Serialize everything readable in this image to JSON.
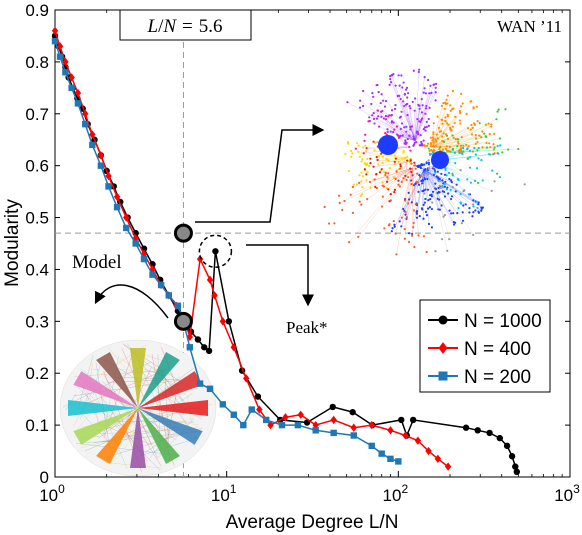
{
  "chart_data": {
    "type": "line",
    "xlabel": "Average Degree L/N",
    "ylabel": "Modularity",
    "xscale": "log",
    "xlim": [
      1,
      1000
    ],
    "ylim": [
      0,
      0.9
    ],
    "x_ticks": [
      {
        "value": 1,
        "base": "10",
        "exp": "0"
      },
      {
        "value": 10,
        "base": "10",
        "exp": "1"
      },
      {
        "value": 100,
        "base": "10",
        "exp": "2"
      },
      {
        "value": 1000,
        "base": "10",
        "exp": "3"
      }
    ],
    "y_ticks": [
      "0",
      "0.1",
      "0.2",
      "0.3",
      "0.4",
      "0.5",
      "0.6",
      "0.7",
      "0.8",
      "0.9"
    ],
    "legend_position": "bottom-right",
    "series": [
      {
        "name": "N = 1000",
        "color": "#000000",
        "marker": "circle",
        "points": [
          [
            1.0,
            0.85
          ],
          [
            1.05,
            0.83
          ],
          [
            1.1,
            0.81
          ],
          [
            1.15,
            0.79
          ],
          [
            1.2,
            0.77
          ],
          [
            1.27,
            0.75
          ],
          [
            1.35,
            0.73
          ],
          [
            1.45,
            0.71
          ],
          [
            1.55,
            0.68
          ],
          [
            1.7,
            0.65
          ],
          [
            1.85,
            0.62
          ],
          [
            2.0,
            0.59
          ],
          [
            2.2,
            0.56
          ],
          [
            2.4,
            0.53
          ],
          [
            2.65,
            0.5
          ],
          [
            2.95,
            0.47
          ],
          [
            3.3,
            0.44
          ],
          [
            3.7,
            0.41
          ],
          [
            4.1,
            0.38
          ],
          [
            4.6,
            0.35
          ],
          [
            5.2,
            0.32
          ],
          [
            5.6,
            0.3
          ],
          [
            6.2,
            0.28
          ],
          [
            6.8,
            0.265
          ],
          [
            7.4,
            0.25
          ],
          [
            7.9,
            0.243
          ],
          [
            8.6,
            0.435
          ],
          [
            10.3,
            0.3
          ],
          [
            12.3,
            0.205
          ],
          [
            15.2,
            0.155
          ],
          [
            20.5,
            0.11
          ],
          [
            29.4,
            0.105
          ],
          [
            41.5,
            0.135
          ],
          [
            54.2,
            0.125
          ],
          [
            70.6,
            0.1
          ],
          [
            104,
            0.11
          ],
          [
            112,
            0.08
          ],
          [
            122,
            0.11
          ],
          [
            248,
            0.095
          ],
          [
            290,
            0.09
          ],
          [
            340,
            0.085
          ],
          [
            390,
            0.075
          ],
          [
            430,
            0.06
          ],
          [
            460,
            0.04
          ],
          [
            480,
            0.02
          ],
          [
            490,
            0.01
          ]
        ]
      },
      {
        "name": "N = 400",
        "color": "#ff0000",
        "marker": "diamond",
        "points": [
          [
            1.0,
            0.86
          ],
          [
            1.07,
            0.83
          ],
          [
            1.15,
            0.8
          ],
          [
            1.25,
            0.77
          ],
          [
            1.36,
            0.74
          ],
          [
            1.5,
            0.7
          ],
          [
            1.65,
            0.66
          ],
          [
            1.85,
            0.62
          ],
          [
            2.05,
            0.58
          ],
          [
            2.3,
            0.54
          ],
          [
            2.6,
            0.5
          ],
          [
            2.95,
            0.46
          ],
          [
            3.3,
            0.43
          ],
          [
            3.7,
            0.4
          ],
          [
            4.15,
            0.37
          ],
          [
            4.6,
            0.35
          ],
          [
            5.1,
            0.33
          ],
          [
            5.6,
            0.31
          ],
          [
            6.1,
            0.27
          ],
          [
            7.0,
            0.42
          ],
          [
            8.0,
            0.38
          ],
          [
            8.5,
            0.35
          ],
          [
            9.5,
            0.3
          ],
          [
            11.0,
            0.25
          ],
          [
            13.0,
            0.19
          ],
          [
            15.5,
            0.13
          ],
          [
            18.0,
            0.1
          ],
          [
            22.0,
            0.115
          ],
          [
            27.0,
            0.12
          ],
          [
            33.0,
            0.1
          ],
          [
            42.0,
            0.11
          ],
          [
            55.0,
            0.095
          ],
          [
            70.0,
            0.1
          ],
          [
            90.0,
            0.09
          ],
          [
            110,
            0.08
          ],
          [
            130,
            0.07
          ],
          [
            150,
            0.05
          ],
          [
            170,
            0.035
          ],
          [
            195,
            0.02
          ]
        ]
      },
      {
        "name": "N = 200",
        "color": "#1f77b4",
        "marker": "square",
        "points": [
          [
            1.0,
            0.84
          ],
          [
            1.07,
            0.81
          ],
          [
            1.15,
            0.78
          ],
          [
            1.25,
            0.75
          ],
          [
            1.36,
            0.72
          ],
          [
            1.5,
            0.68
          ],
          [
            1.65,
            0.64
          ],
          [
            1.85,
            0.6
          ],
          [
            2.05,
            0.56
          ],
          [
            2.3,
            0.52
          ],
          [
            2.6,
            0.48
          ],
          [
            2.95,
            0.45
          ],
          [
            3.3,
            0.42
          ],
          [
            3.7,
            0.39
          ],
          [
            4.15,
            0.37
          ],
          [
            4.6,
            0.35
          ],
          [
            5.2,
            0.33
          ],
          [
            5.5,
            0.31
          ],
          [
            6.1,
            0.25
          ],
          [
            7.0,
            0.18
          ],
          [
            8.0,
            0.17
          ],
          [
            9.5,
            0.14
          ],
          [
            11.0,
            0.12
          ],
          [
            12.5,
            0.1
          ],
          [
            14.0,
            0.13
          ],
          [
            17.0,
            0.11
          ],
          [
            21.0,
            0.1
          ],
          [
            26.0,
            0.1
          ],
          [
            33.0,
            0.09
          ],
          [
            42.0,
            0.085
          ],
          [
            55.0,
            0.08
          ],
          [
            70.0,
            0.06
          ],
          [
            80.0,
            0.045
          ],
          [
            90.0,
            0.035
          ],
          [
            100,
            0.03
          ]
        ]
      }
    ]
  },
  "annotations": {
    "vline_label": {
      "var": "L",
      "denom": "N",
      "eq": "=",
      "value": "5.6"
    },
    "hline_y": 0.47,
    "vline_x": 5.6,
    "model_label": "Model",
    "peak_label": "Peak*",
    "network_label": "WAN ’11"
  }
}
